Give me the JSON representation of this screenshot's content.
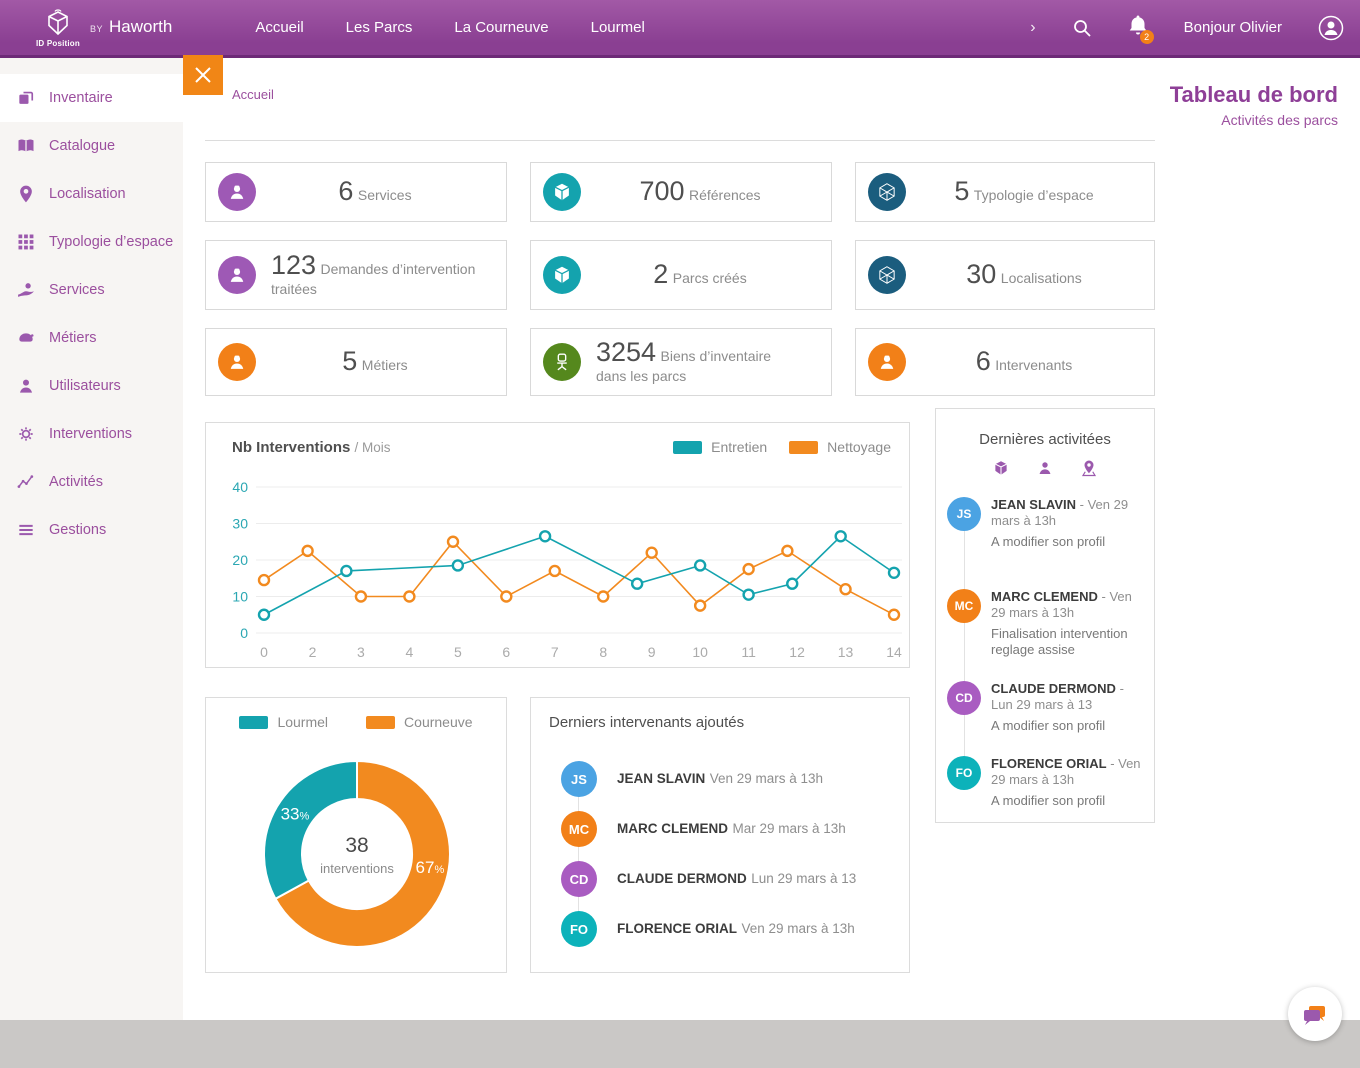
{
  "topnav": {
    "brand_by": "BY",
    "brand_name": "Haworth",
    "brand_sub": "ID Position",
    "items": [
      "Accueil",
      "Les Parcs",
      "La Courneuve",
      "Lourmel"
    ],
    "greeting": "Bonjour Olivier",
    "notification_count": "2"
  },
  "sidebar": {
    "items": [
      {
        "label": "Inventaire",
        "icon": "inventaire",
        "active": true
      },
      {
        "label": "Catalogue",
        "icon": "catalogue",
        "active": false
      },
      {
        "label": "Localisation",
        "icon": "localisation",
        "active": false
      },
      {
        "label": "Typologie d’espace",
        "icon": "typologie",
        "active": false
      },
      {
        "label": "Services",
        "icon": "services",
        "active": false
      },
      {
        "label": "Métiers",
        "icon": "metiers",
        "active": false
      },
      {
        "label": "Utilisateurs",
        "icon": "utilisateurs",
        "active": false
      },
      {
        "label": "Interventions",
        "icon": "interventions",
        "active": false
      },
      {
        "label": "Activités",
        "icon": "activites",
        "active": false
      },
      {
        "label": "Gestions",
        "icon": "gestions",
        "active": false
      }
    ]
  },
  "breadcrumb": "Accueil",
  "header": {
    "title": "Tableau de bord",
    "subtitle": "Activités des parcs"
  },
  "stats": [
    {
      "value": "6",
      "label": "Services",
      "icon": "person",
      "icon_bg": "#9e59b5"
    },
    {
      "value": "700",
      "label": "Références",
      "icon": "cube",
      "icon_bg": "#14a3ae"
    },
    {
      "value": "5",
      "label": "Typologie d’espace",
      "icon": "hexcube",
      "icon_bg": "#1b5d7e"
    },
    {
      "value": "123",
      "label": "Demandes d’intervention traitées",
      "icon": "person",
      "icon_bg": "#9e59b5"
    },
    {
      "value": "2",
      "label": "Parcs créés",
      "icon": "cube",
      "icon_bg": "#14a3ae"
    },
    {
      "value": "30",
      "label": "Localisations",
      "icon": "hexcube",
      "icon_bg": "#1b5d7e"
    },
    {
      "value": "5",
      "label": "Métiers",
      "icon": "person",
      "icon_bg": "#f28018"
    },
    {
      "value": "3254",
      "label": "Biens d’inventaire dans les parcs",
      "icon": "chair",
      "icon_bg": "#55881d"
    },
    {
      "value": "6",
      "label": "Intervenants",
      "icon": "person",
      "icon_bg": "#f28018"
    }
  ],
  "chart_data": [
    {
      "type": "line",
      "title": "Nb Interventions",
      "title_suffix": "/ Mois",
      "x_ticks": [
        "0",
        "2",
        "3",
        "4",
        "5",
        "6",
        "7",
        "8",
        "9",
        "10",
        "11",
        "12",
        "13",
        "14"
      ],
      "y_ticks": [
        0,
        10,
        20,
        30,
        40
      ],
      "ylim": [
        0,
        40
      ],
      "grid": true,
      "legend_position": "top-right",
      "series": [
        {
          "name": "Entretien",
          "color": "#14a3ae",
          "points": [
            [
              0,
              5
            ],
            [
              1.7,
              17
            ],
            [
              4,
              18.5
            ],
            [
              5.8,
              26.5
            ],
            [
              7.7,
              13.5
            ],
            [
              9,
              18.5
            ],
            [
              10,
              10.5
            ],
            [
              10.9,
              13.5
            ],
            [
              11.9,
              26.5
            ],
            [
              13,
              16.5
            ]
          ]
        },
        {
          "name": "Nettoyage",
          "color": "#f28a1f",
          "points": [
            [
              0,
              14.5
            ],
            [
              0.9,
              22.5
            ],
            [
              2,
              10
            ],
            [
              3,
              10
            ],
            [
              3.9,
              25
            ],
            [
              5,
              10
            ],
            [
              6,
              17
            ],
            [
              7,
              10
            ],
            [
              8,
              22
            ],
            [
              9,
              7.5
            ],
            [
              10,
              17.5
            ],
            [
              10.8,
              22.5
            ],
            [
              12,
              12
            ],
            [
              13,
              5
            ]
          ]
        }
      ]
    },
    {
      "type": "pie",
      "donut": true,
      "slices": [
        {
          "label": "Lourmel",
          "value": 33,
          "color": "#14a3ae"
        },
        {
          "label": "Courneuve",
          "value": 67,
          "color": "#f28a1f"
        }
      ],
      "center_value": "38",
      "center_label": "interventions",
      "legend_position": "top"
    }
  ],
  "intervenants": {
    "title": "Derniers intervenants ajoutés",
    "items": [
      {
        "initials": "JS",
        "color": "#4ba3e3",
        "name": "JEAN SLAVIN",
        "date": "Ven 29 mars à 13h"
      },
      {
        "initials": "MC",
        "color": "#f28018",
        "name": "MARC CLEMEND",
        "date": "Mar 29 mars à 13h"
      },
      {
        "initials": "CD",
        "color": "#a95cc1",
        "name": "CLAUDE DERMOND",
        "date": "Lun 29 mars à 13"
      },
      {
        "initials": "FO",
        "color": "#0cb2ba",
        "name": "FLORENCE ORIAL",
        "date": "Ven 29 mars à 13h"
      }
    ]
  },
  "activities": {
    "title": "Dernières activitées",
    "filter_icons": [
      "cube-filter",
      "person-filter",
      "pin-filter"
    ],
    "items": [
      {
        "initials": "JS",
        "color": "#4ba3e3",
        "name": "JEAN SLAVIN",
        "date": "Ven 29 mars à 13h",
        "detail": "A modifier son profil"
      },
      {
        "initials": "MC",
        "color": "#f28018",
        "name": "MARC CLEMEND",
        "date": "Ven 29 mars à 13h",
        "detail": "Finalisation intervention reglage assise"
      },
      {
        "initials": "CD",
        "color": "#a95cc1",
        "name": "CLAUDE DERMOND",
        "date": "Lun 29 mars à 13",
        "detail": "A modifier son profil"
      },
      {
        "initials": "FO",
        "color": "#0cb2ba",
        "name": "FLORENCE ORIAL",
        "date": "Ven 29 mars à 13h",
        "detail": "A modifier son profil"
      }
    ]
  },
  "colors": {
    "brand_purple": "#8e3f97",
    "sidebar_purple": "#9b4f9e",
    "teal": "#14a3ae",
    "orange": "#f28018",
    "navy": "#1b5d7e",
    "green": "#55881d",
    "footer_gray": "#cac8c6"
  }
}
